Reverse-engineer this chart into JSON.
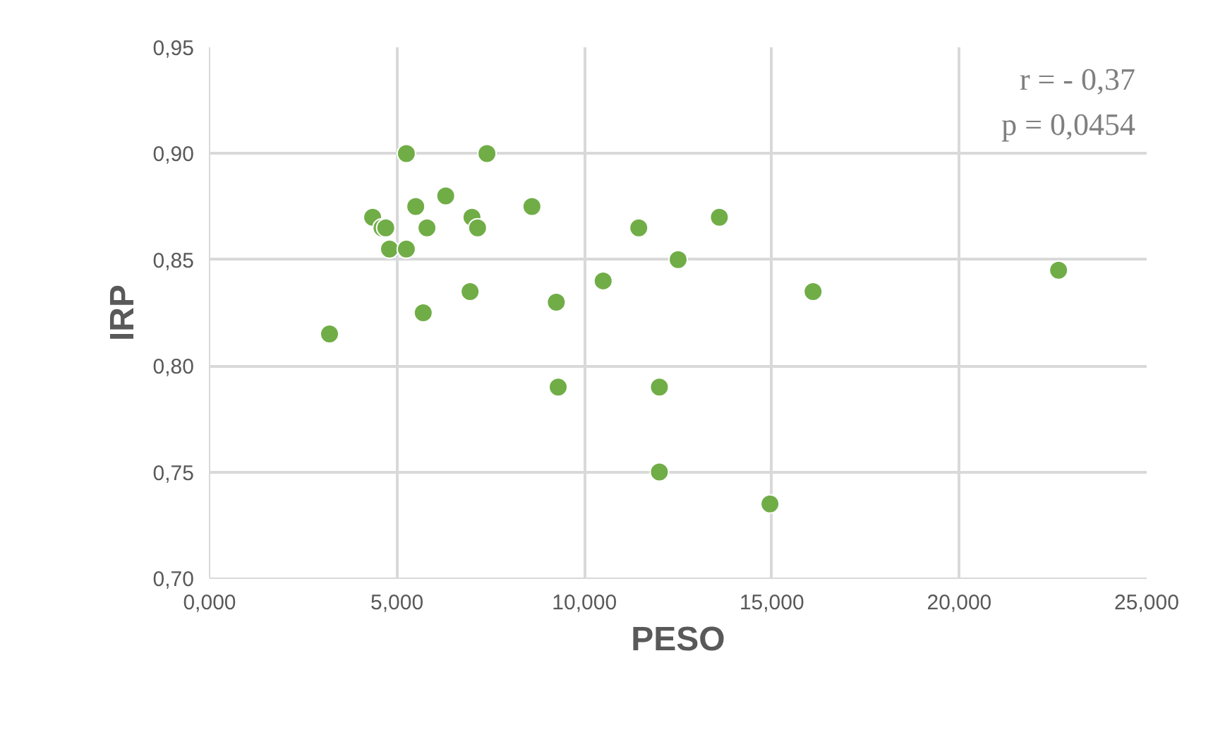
{
  "chart_data": {
    "type": "scatter",
    "xlabel": "PESO",
    "ylabel": "IRP",
    "color": "#70ad47",
    "marker": "circle",
    "grid": true,
    "x": [
      3.2,
      4.35,
      4.6,
      4.7,
      4.8,
      5.25,
      5.25,
      5.5,
      5.7,
      5.8,
      6.3,
      7.4,
      6.95,
      7.0,
      7.15,
      8.6,
      9.25,
      9.3,
      10.5,
      11.45,
      12.0,
      12.0,
      12.5,
      13.6,
      14.95,
      16.1,
      22.65
    ],
    "values": [
      0.815,
      0.87,
      0.865,
      0.865,
      0.855,
      0.9,
      0.855,
      0.875,
      0.825,
      0.865,
      0.88,
      0.9,
      0.835,
      0.87,
      0.865,
      0.875,
      0.83,
      0.79,
      0.84,
      0.865,
      0.79,
      0.75,
      0.85,
      0.87,
      0.735,
      0.835,
      0.845
    ],
    "xlim": [
      0,
      25
    ],
    "ylim": [
      0.7,
      0.95
    ],
    "xticks": [
      {
        "value": 0,
        "label": "0,000"
      },
      {
        "value": 5,
        "label": "5,000"
      },
      {
        "value": 10,
        "label": "10,000"
      },
      {
        "value": 15,
        "label": "15,000"
      },
      {
        "value": 20,
        "label": "20,000"
      },
      {
        "value": 25,
        "label": "25,000"
      }
    ],
    "yticks": [
      {
        "value": 0.7,
        "label": "0,70"
      },
      {
        "value": 0.75,
        "label": "0,75"
      },
      {
        "value": 0.8,
        "label": "0,80"
      },
      {
        "value": 0.85,
        "label": "0,85"
      },
      {
        "value": 0.9,
        "label": "0,90"
      },
      {
        "value": 0.95,
        "label": "0,95"
      }
    ],
    "annotations": [
      "r = - 0,37",
      "p = 0,0454"
    ]
  }
}
